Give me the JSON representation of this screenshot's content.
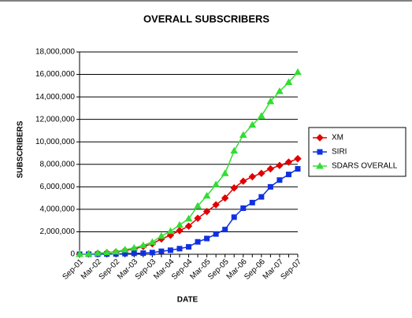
{
  "chart_data": {
    "type": "line",
    "title": "OVERALL SUBSCRIBERS",
    "x_label": "DATE",
    "y_label": "SUBSCRIBERS",
    "categories": [
      "Sep-01",
      null,
      "Mar-02",
      null,
      "Sep-02",
      null,
      "Mar-03",
      null,
      "Sep-03",
      null,
      "Mar-04",
      null,
      "Sep-04",
      null,
      "Mar-05",
      null,
      "Sep-05",
      null,
      "Mar-06",
      null,
      "Sep-06",
      null,
      "Mar-07",
      null,
      "Sep-07"
    ],
    "series": [
      {
        "name": "XM",
        "color": "#e00000",
        "marker": "diamond",
        "values": [
          0,
          30000,
          80000,
          140000,
          200000,
          350000,
          480000,
          690000,
          930000,
          1360000,
          1690000,
          2100000,
          2500000,
          3200000,
          3800000,
          4400000,
          5000000,
          5900000,
          6500000,
          6900000,
          7200000,
          7600000,
          7900000,
          8200000,
          8500000
        ]
      },
      {
        "name": "SIRI",
        "color": "#1030e0",
        "marker": "square",
        "values": [
          0,
          0,
          10000,
          20000,
          30000,
          50000,
          80000,
          100000,
          150000,
          260000,
          360000,
          500000,
          660000,
          1100000,
          1400000,
          1800000,
          2200000,
          3300000,
          4100000,
          4600000,
          5100000,
          6000000,
          6600000,
          7100000,
          7600000
        ]
      },
      {
        "name": "SDARS OVERALL",
        "color": "#33dd33",
        "marker": "triangle",
        "values": [
          0,
          30000,
          90000,
          160000,
          230000,
          400000,
          560000,
          790000,
          1080000,
          1620000,
          2050000,
          2600000,
          3160000,
          4300000,
          5200000,
          6200000,
          7200000,
          9200000,
          10600000,
          11500000,
          12300000,
          13600000,
          14500000,
          15300000,
          16200000
        ]
      }
    ],
    "ylim": [
      0,
      18000000
    ],
    "yticks": [
      0,
      {
        "value": 2000000,
        "label": "2,000,000"
      },
      {
        "value": 4000000,
        "label": "4,000,000"
      },
      {
        "value": 6000000,
        "label": "6,000,000"
      },
      {
        "value": 8000000,
        "label": "8,000,000"
      },
      {
        "value": 10000000,
        "label": "10,000,000"
      },
      {
        "value": 12000000,
        "label": "12,000,000"
      },
      {
        "value": 14000000,
        "label": "14,000,000"
      },
      {
        "value": 16000000,
        "label": "16,000,000"
      },
      {
        "value": 18000000,
        "label": "18,000,000"
      }
    ],
    "grid": true,
    "legend": "right"
  }
}
